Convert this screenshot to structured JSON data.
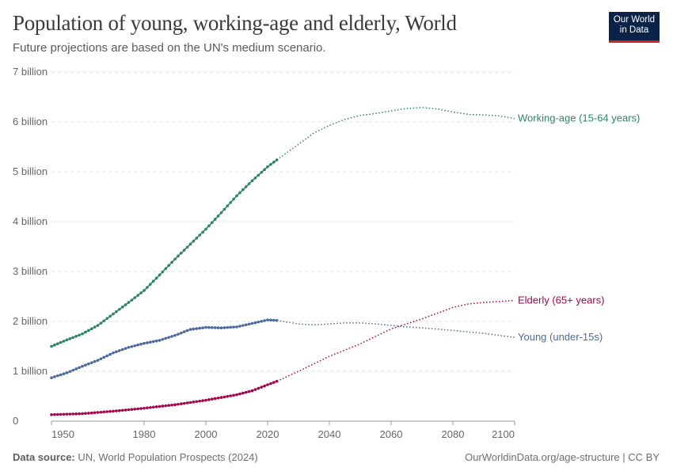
{
  "header": {
    "title": "Population of young, working-age and elderly, World",
    "subtitle": "Future projections are based on the UN's medium scenario.",
    "logo": "Our World in Data"
  },
  "footer": {
    "source_label": "Data source:",
    "source": "UN, World Population Prospects (2024)",
    "url": "OurWorldinData.org/age-structure | CC BY"
  },
  "chart_data": {
    "type": "line",
    "xlim": [
      1950,
      2100
    ],
    "ylim": [
      0,
      7000000000
    ],
    "x_ticks": [
      1950,
      1980,
      2000,
      2020,
      2040,
      2060,
      2080,
      2100
    ],
    "y_ticks": [
      {
        "v": 0,
        "label": "0"
      },
      {
        "v": 1000000000.0,
        "label": "1 billion"
      },
      {
        "v": 2000000000.0,
        "label": "2 billion"
      },
      {
        "v": 3000000000.0,
        "label": "3 billion"
      },
      {
        "v": 4000000000.0,
        "label": "4 billion"
      },
      {
        "v": 5000000000.0,
        "label": "5 billion"
      },
      {
        "v": 6000000000.0,
        "label": "6 billion"
      },
      {
        "v": 7000000000.0,
        "label": "7 billion"
      }
    ],
    "grid": "horizontal dashed",
    "projection_start": 2023,
    "series": [
      {
        "name": "Working-age (15-64 years)",
        "color": "#2c8465",
        "points": [
          [
            1950,
            1500000000.0
          ],
          [
            1955,
            1630000000.0
          ],
          [
            1960,
            1750000000.0
          ],
          [
            1965,
            1920000000.0
          ],
          [
            1970,
            2150000000.0
          ],
          [
            1975,
            2380000000.0
          ],
          [
            1980,
            2620000000.0
          ],
          [
            1985,
            2930000000.0
          ],
          [
            1990,
            3250000000.0
          ],
          [
            1995,
            3550000000.0
          ],
          [
            2000,
            3850000000.0
          ],
          [
            2005,
            4180000000.0
          ],
          [
            2010,
            4520000000.0
          ],
          [
            2015,
            4820000000.0
          ],
          [
            2020,
            5100000000.0
          ],
          [
            2023,
            5240000000.0
          ],
          [
            2030,
            5550000000.0
          ],
          [
            2035,
            5780000000.0
          ],
          [
            2040,
            5930000000.0
          ],
          [
            2045,
            6050000000.0
          ],
          [
            2050,
            6130000000.0
          ],
          [
            2055,
            6170000000.0
          ],
          [
            2060,
            6220000000.0
          ],
          [
            2065,
            6270000000.0
          ],
          [
            2070,
            6290000000.0
          ],
          [
            2075,
            6260000000.0
          ],
          [
            2080,
            6200000000.0
          ],
          [
            2085,
            6150000000.0
          ],
          [
            2090,
            6140000000.0
          ],
          [
            2095,
            6120000000.0
          ],
          [
            2100,
            6070000000.0
          ]
        ]
      },
      {
        "name": "Elderly (65+ years)",
        "color": "#a2064b",
        "points": [
          [
            1950,
            130000000.0
          ],
          [
            1960,
            150000000.0
          ],
          [
            1970,
            200000000.0
          ],
          [
            1980,
            260000000.0
          ],
          [
            1990,
            330000000.0
          ],
          [
            2000,
            420000000.0
          ],
          [
            2010,
            530000000.0
          ],
          [
            2015,
            610000000.0
          ],
          [
            2020,
            730000000.0
          ],
          [
            2023,
            800000000.0
          ],
          [
            2030,
            1000000000.0
          ],
          [
            2040,
            1300000000.0
          ],
          [
            2050,
            1550000000.0
          ],
          [
            2060,
            1850000000.0
          ],
          [
            2070,
            2050000000.0
          ],
          [
            2080,
            2280000000.0
          ],
          [
            2085,
            2350000000.0
          ],
          [
            2090,
            2380000000.0
          ],
          [
            2100,
            2420000000.0
          ]
        ]
      },
      {
        "name": "Young (under-15s)",
        "color": "#4c6a9c",
        "points": [
          [
            1950,
            870000000.0
          ],
          [
            1955,
            970000000.0
          ],
          [
            1960,
            1100000000.0
          ],
          [
            1965,
            1220000000.0
          ],
          [
            1970,
            1370000000.0
          ],
          [
            1975,
            1480000000.0
          ],
          [
            1980,
            1560000000.0
          ],
          [
            1985,
            1620000000.0
          ],
          [
            1990,
            1720000000.0
          ],
          [
            1995,
            1840000000.0
          ],
          [
            2000,
            1880000000.0
          ],
          [
            2005,
            1870000000.0
          ],
          [
            2010,
            1890000000.0
          ],
          [
            2015,
            1960000000.0
          ],
          [
            2020,
            2030000000.0
          ],
          [
            2023,
            2020000000.0
          ],
          [
            2030,
            1950000000.0
          ],
          [
            2035,
            1930000000.0
          ],
          [
            2040,
            1950000000.0
          ],
          [
            2045,
            1970000000.0
          ],
          [
            2050,
            1970000000.0
          ],
          [
            2055,
            1950000000.0
          ],
          [
            2060,
            1920000000.0
          ],
          [
            2065,
            1890000000.0
          ],
          [
            2070,
            1870000000.0
          ],
          [
            2080,
            1820000000.0
          ],
          [
            2090,
            1760000000.0
          ],
          [
            2100,
            1680000000.0
          ]
        ]
      }
    ]
  }
}
